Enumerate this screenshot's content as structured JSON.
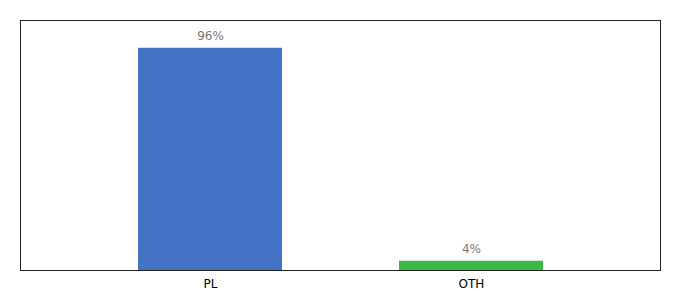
{
  "chart_data": {
    "type": "bar",
    "categories": [
      "PL",
      "OTH"
    ],
    "values": [
      96,
      4
    ],
    "value_labels": [
      "96%",
      "4%"
    ],
    "colors": [
      "#4472c4",
      "#3cb843"
    ],
    "ylim": [
      0,
      108
    ],
    "yticks": [],
    "data_labels": true,
    "tick_labels": "x"
  }
}
